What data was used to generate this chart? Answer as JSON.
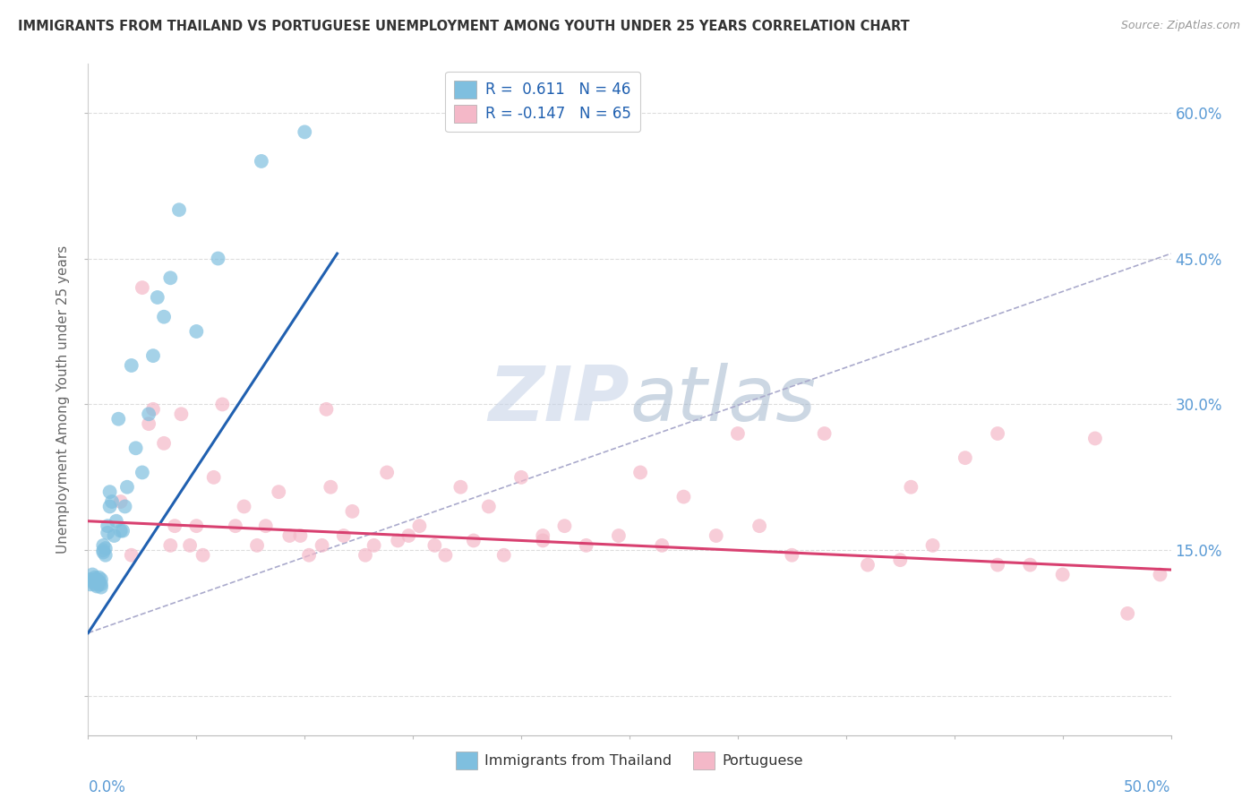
{
  "title": "IMMIGRANTS FROM THAILAND VS PORTUGUESE UNEMPLOYMENT AMONG YOUTH UNDER 25 YEARS CORRELATION CHART",
  "source": "Source: ZipAtlas.com",
  "ylabel": "Unemployment Among Youth under 25 years",
  "right_yticklabels": [
    "",
    "15.0%",
    "30.0%",
    "45.0%",
    "60.0%"
  ],
  "right_ytick_vals": [
    0.0,
    0.15,
    0.3,
    0.45,
    0.6
  ],
  "xmin": 0.0,
  "xmax": 0.5,
  "ymin": -0.04,
  "ymax": 0.65,
  "blue_scatter_color": "#7fbfdf",
  "pink_scatter_color": "#f4b8c8",
  "blue_line_color": "#2060b0",
  "pink_line_color": "#d84070",
  "dash_line_color": "#aaaacc",
  "background_color": "#ffffff",
  "grid_color": "#dddddd",
  "axis_label_color": "#5b9bd5",
  "title_color": "#333333",
  "source_color": "#999999",
  "watermark_color": "#dde4ee",
  "title_fontsize": 10.5,
  "blue_scatter_x": [
    0.001,
    0.001,
    0.002,
    0.002,
    0.003,
    0.003,
    0.003,
    0.004,
    0.004,
    0.004,
    0.005,
    0.005,
    0.005,
    0.006,
    0.006,
    0.006,
    0.007,
    0.007,
    0.007,
    0.008,
    0.008,
    0.009,
    0.009,
    0.01,
    0.01,
    0.011,
    0.012,
    0.013,
    0.014,
    0.015,
    0.016,
    0.017,
    0.018,
    0.02,
    0.022,
    0.025,
    0.028,
    0.03,
    0.032,
    0.035,
    0.038,
    0.042,
    0.05,
    0.06,
    0.08,
    0.1
  ],
  "blue_scatter_y": [
    0.115,
    0.12,
    0.125,
    0.118,
    0.12,
    0.115,
    0.122,
    0.118,
    0.113,
    0.12,
    0.115,
    0.118,
    0.122,
    0.12,
    0.115,
    0.112,
    0.15,
    0.155,
    0.148,
    0.152,
    0.145,
    0.175,
    0.168,
    0.21,
    0.195,
    0.2,
    0.165,
    0.18,
    0.285,
    0.17,
    0.17,
    0.195,
    0.215,
    0.34,
    0.255,
    0.23,
    0.29,
    0.35,
    0.41,
    0.39,
    0.43,
    0.5,
    0.375,
    0.45,
    0.55,
    0.58
  ],
  "pink_scatter_x": [
    0.015,
    0.02,
    0.025,
    0.028,
    0.03,
    0.035,
    0.038,
    0.04,
    0.043,
    0.047,
    0.05,
    0.053,
    0.058,
    0.062,
    0.068,
    0.072,
    0.078,
    0.082,
    0.088,
    0.093,
    0.098,
    0.102,
    0.108,
    0.112,
    0.118,
    0.122,
    0.128,
    0.132,
    0.138,
    0.143,
    0.148,
    0.153,
    0.16,
    0.165,
    0.172,
    0.178,
    0.185,
    0.192,
    0.2,
    0.21,
    0.22,
    0.23,
    0.245,
    0.255,
    0.265,
    0.275,
    0.29,
    0.31,
    0.325,
    0.34,
    0.36,
    0.375,
    0.39,
    0.405,
    0.42,
    0.435,
    0.45,
    0.465,
    0.48,
    0.495,
    0.11,
    0.21,
    0.3,
    0.38,
    0.42
  ],
  "pink_scatter_y": [
    0.2,
    0.145,
    0.42,
    0.28,
    0.295,
    0.26,
    0.155,
    0.175,
    0.29,
    0.155,
    0.175,
    0.145,
    0.225,
    0.3,
    0.175,
    0.195,
    0.155,
    0.175,
    0.21,
    0.165,
    0.165,
    0.145,
    0.155,
    0.215,
    0.165,
    0.19,
    0.145,
    0.155,
    0.23,
    0.16,
    0.165,
    0.175,
    0.155,
    0.145,
    0.215,
    0.16,
    0.195,
    0.145,
    0.225,
    0.165,
    0.175,
    0.155,
    0.165,
    0.23,
    0.155,
    0.205,
    0.165,
    0.175,
    0.145,
    0.27,
    0.135,
    0.14,
    0.155,
    0.245,
    0.135,
    0.135,
    0.125,
    0.265,
    0.085,
    0.125,
    0.295,
    0.16,
    0.27,
    0.215,
    0.27
  ],
  "blue_line_x0": 0.0,
  "blue_line_y0": 0.065,
  "blue_line_x1": 0.115,
  "blue_line_y1": 0.455,
  "dash_line_x0": 0.0,
  "dash_line_y0": 0.065,
  "dash_line_x1": 0.5,
  "dash_line_y1": 0.455,
  "pink_line_x0": 0.0,
  "pink_line_y0": 0.18,
  "pink_line_x1": 0.5,
  "pink_line_y1": 0.13,
  "legend_label_blue": "R =  0.611   N = 46",
  "legend_label_pink": "R = -0.147   N = 65",
  "bottom_legend_blue": "Immigrants from Thailand",
  "bottom_legend_pink": "Portuguese"
}
